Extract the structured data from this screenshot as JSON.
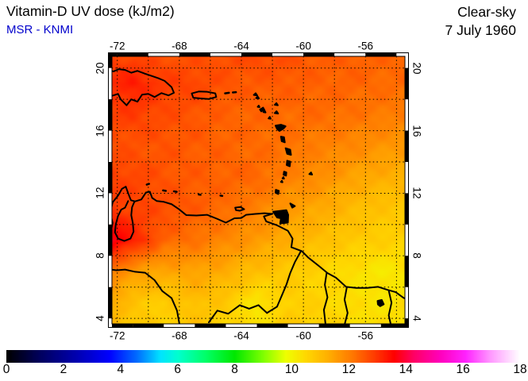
{
  "header": {
    "title": "Vitamin-D UV dose (kJ/m2)",
    "subtitle": "MSR - KNMI",
    "subtitle_color": "#0000CC",
    "condition": "Clear-sky",
    "date": "7 July 1960"
  },
  "axes": {
    "lon_ticks": [
      {
        "label": "-72",
        "value": -72
      },
      {
        "label": "-68",
        "value": -68
      },
      {
        "label": "-64",
        "value": -64
      },
      {
        "label": "-60",
        "value": -60
      },
      {
        "label": "-56",
        "value": -56
      }
    ],
    "lat_ticks": [
      {
        "label": "20",
        "value": 20
      },
      {
        "label": "16",
        "value": 16
      },
      {
        "label": "12",
        "value": 12
      },
      {
        "label": "8",
        "value": 8
      },
      {
        "label": "4",
        "value": 4
      }
    ],
    "grid_step_deg": 2
  },
  "colorbar": {
    "min": 0,
    "max": 18,
    "tick_labels": [
      "0",
      "2",
      "4",
      "6",
      "8",
      "10",
      "12",
      "14",
      "16",
      "18"
    ],
    "stops": [
      [
        0.0,
        "#000000"
      ],
      [
        1.2,
        "#000060"
      ],
      [
        2.2,
        "#0000A0"
      ],
      [
        3.6,
        "#0000FF"
      ],
      [
        4.6,
        "#0070FF"
      ],
      [
        5.4,
        "#00E4FF"
      ],
      [
        6.0,
        "#00FFD0"
      ],
      [
        7.0,
        "#00FF66"
      ],
      [
        8.0,
        "#00E800"
      ],
      [
        9.0,
        "#7FFF00"
      ],
      [
        9.8,
        "#EFFF00"
      ],
      [
        10.5,
        "#FFD800"
      ],
      [
        11.3,
        "#FFAE00"
      ],
      [
        12.1,
        "#FF7A00"
      ],
      [
        12.9,
        "#FF3C00"
      ],
      [
        13.6,
        "#FF0000"
      ],
      [
        14.3,
        "#FF0066"
      ],
      [
        15.2,
        "#FF00BB"
      ],
      [
        16.1,
        "#FF22FF"
      ],
      [
        17.0,
        "#FF9BFF"
      ],
      [
        18.0,
        "#FFFFFF"
      ]
    ]
  },
  "chart_data": {
    "type": "heatmap",
    "title": "Vitamin-D UV dose (kJ/m2)",
    "units": "kJ/m2",
    "scale_range": [
      0,
      18
    ],
    "domain": {
      "lon": [
        -72.6,
        -53.2
      ],
      "lat": [
        3.4,
        21.0
      ]
    },
    "grid_lon": [
      -73,
      -71,
      -69,
      -67,
      -65,
      -63,
      -61,
      -59,
      -57,
      -55,
      -53
    ],
    "grid_lat": [
      21,
      19,
      17,
      15,
      13,
      11,
      9,
      7,
      5,
      3
    ],
    "values": [
      [
        12.8,
        12.7,
        12.6,
        12.6,
        12.7,
        12.8,
        12.7,
        12.5,
        12.5,
        12.4,
        12.4
      ],
      [
        13.0,
        13.3,
        12.9,
        12.8,
        12.6,
        12.5,
        12.5,
        12.4,
        12.4,
        12.3,
        12.3
      ],
      [
        12.8,
        12.9,
        12.7,
        12.6,
        12.4,
        12.4,
        12.3,
        12.3,
        12.2,
        12.1,
        12.0
      ],
      [
        12.7,
        12.6,
        12.6,
        12.5,
        12.4,
        12.3,
        12.2,
        12.0,
        11.9,
        11.7,
        11.6
      ],
      [
        12.9,
        12.8,
        12.6,
        12.5,
        12.4,
        12.35,
        12.0,
        11.8,
        11.5,
        11.3,
        11.2
      ],
      [
        13.0,
        12.8,
        12.7,
        12.5,
        12.3,
        12.0,
        11.6,
        11.4,
        11.1,
        10.9,
        10.8
      ],
      [
        14.1,
        13.3,
        12.4,
        12.2,
        11.9,
        11.6,
        11.3,
        11.0,
        10.8,
        10.7,
        10.6
      ],
      [
        12.3,
        11.6,
        11.4,
        11.5,
        11.3,
        11.0,
        10.8,
        10.6,
        10.4,
        10.2,
        10.3
      ],
      [
        11.5,
        10.9,
        10.7,
        11.0,
        10.8,
        10.2,
        10.7,
        10.6,
        10.4,
        10.3,
        10.4
      ],
      [
        11.3,
        10.8,
        10.6,
        10.9,
        10.5,
        10.4,
        10.8,
        10.7,
        10.5,
        10.4,
        10.5
      ]
    ]
  }
}
